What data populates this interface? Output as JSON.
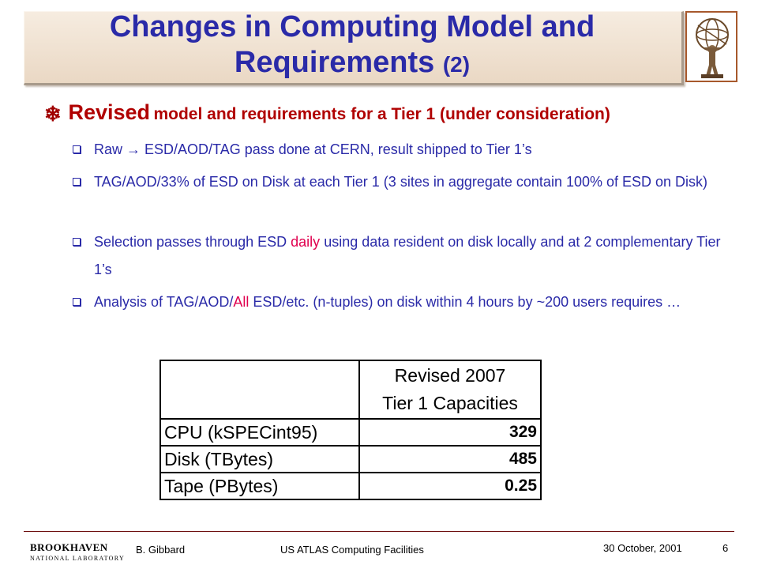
{
  "title": {
    "line1": "Changes in Computing Model and",
    "line2": "Requirements",
    "line2_suffix": "(2)"
  },
  "logo": {
    "icon": "atlas-globe-statue-icon"
  },
  "main_bullet": {
    "icon": "snowflake-bullet-icon",
    "strong": "Revised",
    "rest": "model and requirements for a Tier 1 (under consideration)"
  },
  "bullets": [
    {
      "part1": "Raw",
      "arrow": "→",
      "part2": " ESD/AOD/TAG pass done at CERN, result shipped to Tier 1’s"
    },
    {
      "text": "TAG/AOD/33% of ESD on Disk at each Tier 1 (3 sites in aggregate contain 100% of ESD on Disk)"
    },
    {
      "pre": "Selection passes through ESD ",
      "hl": "daily",
      "post": " using data resident on disk locally and at 2 complementary Tier 1’s"
    },
    {
      "pre": "Analysis of TAG/AOD/",
      "hl": "All",
      "post": " ESD/etc. (n-tuples) on disk within 4 hours by ~200 users requires …"
    }
  ],
  "table": {
    "header_line1": "Revised 2007",
    "header_line2": "Tier 1 Capacities",
    "rows": [
      {
        "label": "CPU (kSPECint95)",
        "value": "329"
      },
      {
        "label": "Disk (TBytes)",
        "value": "485"
      },
      {
        "label": "Tape (PBytes)",
        "value": "0.25"
      }
    ]
  },
  "footer": {
    "lab_name": "BROOKHAVEN",
    "lab_sub": "NATIONAL LABORATORY",
    "author": "B. Gibbard",
    "center": "US ATLAS Computing Facilities",
    "date": "30 October, 2001",
    "page": "6"
  },
  "colors": {
    "title": "#2a2aa8",
    "heading": "#b00000",
    "highlight": "#e0004e",
    "band": "#ead8c4"
  }
}
